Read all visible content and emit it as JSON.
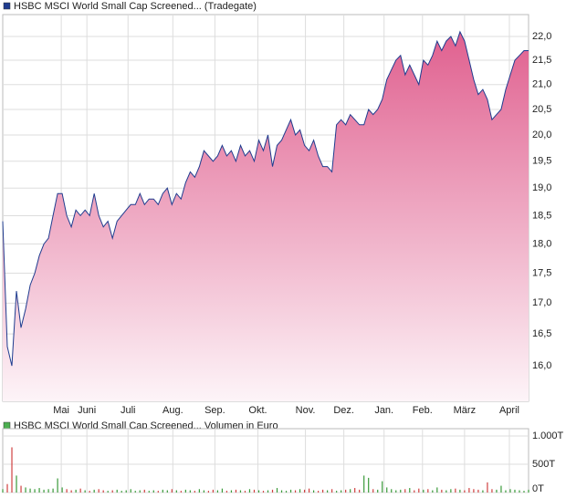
{
  "chart_data": [
    {
      "type": "area",
      "legend": "HSBC MSCI World Small Cap Screened... (Tradegate)",
      "color": "#1f3c8f",
      "fill_top": "#e0608f",
      "fill_bottom": "#fdf4f8",
      "log_scale": true,
      "grid": true,
      "values": [
        18.4,
        16.3,
        16.0,
        17.2,
        16.6,
        16.9,
        17.3,
        17.5,
        17.8,
        18.0,
        18.1,
        18.5,
        18.9,
        18.9,
        18.5,
        18.3,
        18.6,
        18.5,
        18.6,
        18.5,
        18.9,
        18.5,
        18.3,
        18.4,
        18.1,
        18.4,
        18.5,
        18.6,
        18.7,
        18.7,
        18.9,
        18.7,
        18.8,
        18.8,
        18.7,
        18.9,
        19.0,
        18.7,
        18.9,
        18.8,
        19.1,
        19.3,
        19.2,
        19.4,
        19.7,
        19.6,
        19.5,
        19.6,
        19.8,
        19.6,
        19.7,
        19.5,
        19.8,
        19.6,
        19.7,
        19.5,
        19.9,
        19.7,
        20.0,
        19.4,
        19.8,
        19.9,
        20.1,
        20.3,
        20.0,
        20.1,
        19.8,
        19.7,
        19.9,
        19.6,
        19.4,
        19.4,
        19.3,
        20.2,
        20.3,
        20.2,
        20.4,
        20.3,
        20.2,
        20.2,
        20.5,
        20.4,
        20.5,
        20.7,
        21.1,
        21.3,
        21.5,
        21.6,
        21.2,
        21.4,
        21.2,
        21.0,
        21.5,
        21.4,
        21.6,
        21.9,
        21.7,
        21.9,
        22.0,
        21.8,
        22.1,
        21.9,
        21.5,
        21.1,
        20.8,
        20.9,
        20.7,
        20.3,
        20.4,
        20.5,
        20.9,
        21.2,
        21.5,
        21.6,
        21.7,
        21.7
      ],
      "xlim": [
        0,
        115
      ],
      "xticks": [
        {
          "value": 12.8,
          "label": "Mai"
        },
        {
          "value": 18.4,
          "label": "Juni"
        },
        {
          "value": 27.4,
          "label": "Juli"
        },
        {
          "value": 37.2,
          "label": "Aug."
        },
        {
          "value": 46.4,
          "label": "Sep."
        },
        {
          "value": 55.8,
          "label": "Okt."
        },
        {
          "value": 66.2,
          "label": "Nov."
        },
        {
          "value": 74.6,
          "label": "Dez."
        },
        {
          "value": 83.4,
          "label": "Jan."
        },
        {
          "value": 91.8,
          "label": "Feb."
        },
        {
          "value": 101,
          "label": "März"
        },
        {
          "value": 110.8,
          "label": "April"
        }
      ],
      "ylim": [
        15.46,
        22.47
      ],
      "yticks": [
        {
          "value": 16,
          "label": "16,0"
        },
        {
          "value": 16.5,
          "label": "16,5"
        },
        {
          "value": 17,
          "label": "17,0"
        },
        {
          "value": 17.5,
          "label": "17,5"
        },
        {
          "value": 18,
          "label": "18,0"
        },
        {
          "value": 18.5,
          "label": "18,5"
        },
        {
          "value": 19,
          "label": "19,0"
        },
        {
          "value": 19.5,
          "label": "19,5"
        },
        {
          "value": 20,
          "label": "20,0"
        },
        {
          "value": 20.5,
          "label": "20,5"
        },
        {
          "value": 21,
          "label": "21,0"
        },
        {
          "value": 21.5,
          "label": "21,5"
        },
        {
          "value": 22,
          "label": "22,0"
        }
      ]
    },
    {
      "type": "bar",
      "legend": "HSBC MSCI World Small Cap Screened... Volumen in Euro",
      "color": "#4caf50",
      "up_color": "#3a9a3a",
      "down_color": "#d04040",
      "values": [
        60,
        150,
        800,
        300,
        120,
        90,
        70,
        60,
        80,
        50,
        60,
        70,
        250,
        90,
        60,
        40,
        50,
        70,
        40,
        30,
        50,
        60,
        40,
        30,
        40,
        50,
        30,
        40,
        60,
        30,
        40,
        50,
        30,
        40,
        30,
        50,
        40,
        60,
        40,
        30,
        50,
        40,
        30,
        60,
        40,
        30,
        50,
        40,
        70,
        30,
        40,
        50,
        40,
        30,
        60,
        50,
        40,
        30,
        40,
        50,
        80,
        40,
        30,
        50,
        40,
        60,
        50,
        70,
        40,
        30,
        50,
        40,
        60,
        30,
        40,
        50,
        60,
        80,
        50,
        300,
        260,
        60,
        50,
        200,
        90,
        60,
        40,
        50,
        60,
        80,
        40,
        70,
        50,
        60,
        40,
        90,
        50,
        40,
        60,
        70,
        50,
        40,
        80,
        60,
        50,
        40,
        180,
        60,
        50,
        120,
        40,
        60,
        50,
        40,
        30,
        50
      ],
      "ylim": [
        0,
        1130
      ],
      "yticks": [
        {
          "value": 0,
          "label": "0T"
        },
        {
          "value": 500,
          "label": "500T"
        },
        {
          "value": 1000,
          "label": "1.000T"
        }
      ]
    }
  ]
}
